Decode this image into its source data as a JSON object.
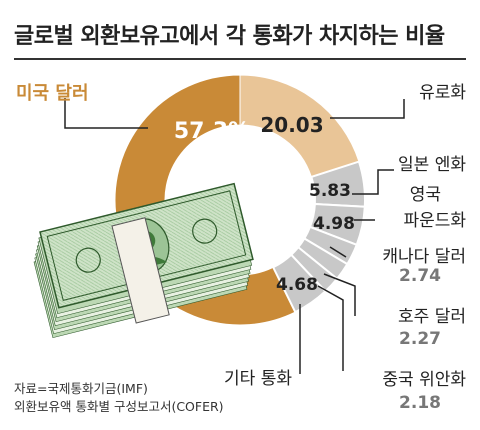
{
  "title": "글로벌 외환보유고에서 각 통화가 차지하는 비율",
  "source": {
    "line1": "자료=국제통화기금(IMF)",
    "line2": "외환보유액 통화별 구성보고서(COFER)"
  },
  "colors": {
    "usd": "#c98a37",
    "eur": "#e9c597",
    "others": "#c8c8c8",
    "label_text": "#222222",
    "value_grey": "#777777",
    "leader": "#222222"
  },
  "chart_data": {
    "type": "pie",
    "style": "donut",
    "unit": "%",
    "categories": [
      "미국 달러",
      "유로화",
      "일본 엔화",
      "영국 파운드화",
      "캐나다 달러",
      "호주 달러",
      "중국 위안화",
      "기타 통화"
    ],
    "values": [
      57.3,
      20.03,
      5.83,
      4.98,
      2.74,
      2.27,
      2.18,
      4.68
    ],
    "value_labels": [
      "57.3%",
      "20.03",
      "5.83",
      "4.98",
      "2.74",
      "2.27",
      "2.18",
      "4.68"
    ],
    "category_labels": [
      [
        "미국 달러"
      ],
      [
        "유로화"
      ],
      [
        "일본 엔화"
      ],
      [
        "영국",
        "파운드화"
      ],
      [
        "캐나다 달러"
      ],
      [
        "호주 달러"
      ],
      [
        "중국 위안화"
      ],
      [
        "기타 통화"
      ]
    ]
  }
}
